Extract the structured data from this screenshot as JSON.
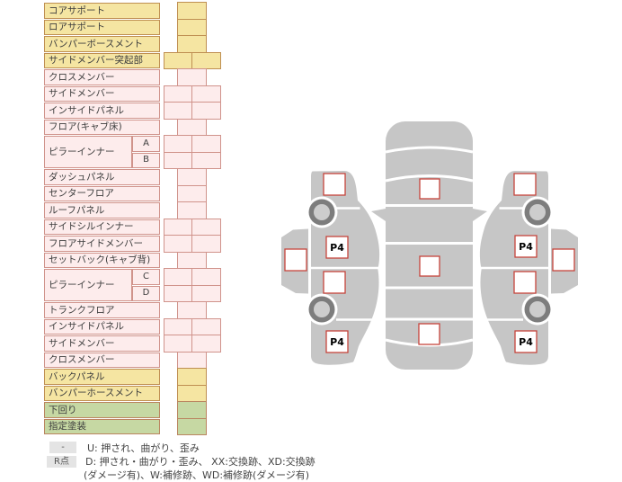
{
  "palette": {
    "row_yellow": "#f5e5a2",
    "row_pink": "#fdecec",
    "row_green": "#c6d8a3",
    "border_yellow": "#bf8f52",
    "border_pink": "#d0938b",
    "border_green": "#ba8560",
    "marker_border_red": "#c5443c",
    "car_gray": "#c6c6c6",
    "legend_badge_gray": "#e4e4e4"
  },
  "table": {
    "rows": [
      {
        "label": "コアサポート",
        "color": "yellow",
        "cells": "single"
      },
      {
        "label": "ロアサポート",
        "color": "yellow",
        "cells": "single"
      },
      {
        "label": "バンパーボースメント",
        "color": "yellow",
        "cells": "single"
      },
      {
        "label": "サイドメンバー突起部",
        "color": "yellow",
        "cells": "double"
      },
      {
        "label": "クロスメンバー",
        "color": "pink",
        "cells": "single"
      },
      {
        "label": "サイドメンバー",
        "color": "pink",
        "cells": "double"
      },
      {
        "label": "インサイドパネル",
        "color": "pink",
        "cells": "double"
      },
      {
        "label": "フロア(キャブ床)",
        "color": "pink",
        "cells": "single"
      },
      {
        "label": "ピラーインナー",
        "color": "pink",
        "cells": "double",
        "group": [
          "A",
          "B"
        ]
      },
      {
        "label": "ダッシュパネル",
        "color": "pink",
        "cells": "single"
      },
      {
        "label": "センターフロア",
        "color": "pink",
        "cells": "single"
      },
      {
        "label": "ルーフパネル",
        "color": "pink",
        "cells": "single"
      },
      {
        "label": "サイドシルインナー",
        "color": "pink",
        "cells": "double"
      },
      {
        "label": "フロアサイドメンバー",
        "color": "pink",
        "cells": "double"
      },
      {
        "label": "セットバック(キャブ背)",
        "color": "pink",
        "cells": "single"
      },
      {
        "label": "ピラーインナー",
        "color": "pink",
        "cells": "double",
        "group": [
          "C",
          "D"
        ]
      },
      {
        "label": "トランクフロア",
        "color": "pink",
        "cells": "single"
      },
      {
        "label": "インサイドパネル",
        "color": "pink",
        "cells": "double"
      },
      {
        "label": "サイドメンバー",
        "color": "pink",
        "cells": "double"
      },
      {
        "label": "クロスメンバー",
        "color": "pink",
        "cells": "single"
      },
      {
        "label": "バックパネル",
        "color": "yellow",
        "cells": "single"
      },
      {
        "label": "バンパーホースメント",
        "color": "yellow",
        "cells": "single"
      },
      {
        "label": "下回り",
        "color": "green",
        "cells": "single"
      },
      {
        "label": "指定塗装",
        "color": "green",
        "cells": "single"
      }
    ]
  },
  "legend": {
    "items": [
      {
        "badge": "-",
        "text": "U: 押され、曲がり、歪み"
      },
      {
        "badge": "R点",
        "text": "D: 押され・曲がり・歪み、 XX:交換跡、XD:交換跡"
      },
      {
        "badge": "",
        "text": "(ダメージ有)、W:補修跡、WD:補修跡(ダメージ有)"
      }
    ]
  },
  "diagram": {
    "p4_label": "P4"
  }
}
